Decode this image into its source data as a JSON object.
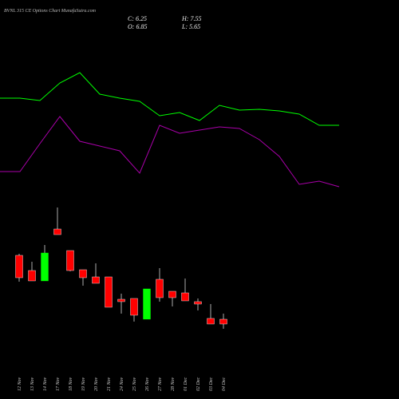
{
  "chart_data": [
    {
      "type": "candlestick",
      "title": "BVNL 315 CE Options  Chart MunafaSutra.com",
      "ohlc_labels": [
        "C: 6.25",
        "H: 7.55",
        "O: 6.85",
        "L: 5.65"
      ],
      "categories": [
        "12 Nov",
        "13 Nov",
        "14 Nov",
        "17 Nov",
        "18 Nov",
        "19 Nov",
        "20 Nov",
        "21 Nov",
        "24 Nov",
        "25 Nov",
        "26 Nov",
        "27 Nov",
        "28 Nov",
        "01 Dec",
        "02 Dec",
        "03 Dec",
        "04 Dec"
      ],
      "open": [
        14.85,
        12.95,
        11.65,
        18.15,
        15.45,
        13.05,
        12.15,
        12.15,
        9.35,
        9.45,
        6.85,
        11.85,
        10.35,
        10.15,
        9.05,
        6.95,
        6.85
      ],
      "high": [
        15.05,
        14.05,
        16.15,
        20.85,
        15.45,
        13.05,
        13.85,
        12.15,
        10.05,
        9.45,
        10.65,
        13.25,
        10.35,
        11.95,
        9.45,
        8.75,
        7.55
      ],
      "low": [
        11.55,
        11.65,
        11.65,
        17.45,
        12.85,
        11.05,
        11.35,
        8.35,
        7.55,
        6.55,
        6.85,
        9.05,
        8.45,
        9.15,
        7.95,
        6.25,
        5.65
      ],
      "close": [
        12.05,
        11.65,
        15.15,
        17.45,
        12.95,
        12.05,
        11.35,
        8.35,
        9.05,
        7.35,
        10.65,
        9.55,
        9.55,
        9.15,
        8.75,
        6.25,
        6.25
      ],
      "up_color": "#00ff00",
      "down_color": "#ff0000",
      "wick_color": "#aaaaaa",
      "ylim": [
        2,
        22
      ]
    },
    {
      "type": "line",
      "series": [
        {
          "color": "#00ff00",
          "values": [
            68.5,
            68.5,
            67,
            78,
            84.5,
            71,
            68.5,
            66.5,
            57.5,
            59.5,
            54.5,
            64,
            61,
            61.5,
            60.5,
            58.5,
            51.5,
            51.5
          ]
        },
        {
          "color": "#aa00aa",
          "values": [
            22.5,
            22.5,
            40,
            57,
            41.5,
            38.5,
            35.5,
            21.5,
            51.5,
            46.5,
            48.5,
            50.5,
            49.5,
            42.5,
            32,
            14.5,
            16.5,
            13
          ]
        }
      ],
      "ylim": [
        0,
        100
      ]
    }
  ]
}
